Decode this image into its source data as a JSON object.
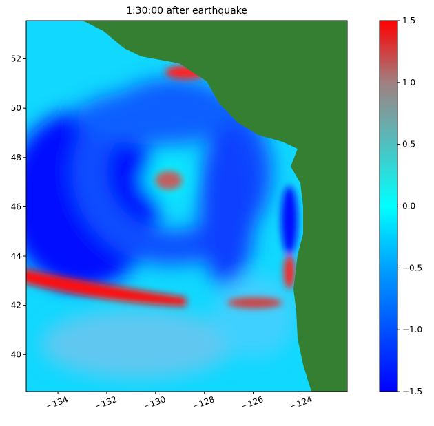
{
  "chart_data": {
    "type": "heatmap",
    "title": "1:30:00 after earthquake",
    "xlim": [
      -135.3,
      -122.15
    ],
    "ylim": [
      38.5,
      53.55
    ],
    "xticks": [
      {
        "value": -134,
        "label": "−134"
      },
      {
        "value": -132,
        "label": "−132"
      },
      {
        "value": -130,
        "label": "−130"
      },
      {
        "value": -128,
        "label": "−128"
      },
      {
        "value": -126,
        "label": "−126"
      },
      {
        "value": -124,
        "label": "−124"
      }
    ],
    "yticks": [
      40,
      42,
      44,
      46,
      48,
      50,
      52
    ],
    "clim": [
      -1.5,
      1.5
    ],
    "cticks": [
      {
        "value": -1.5,
        "label": "−1.5"
      },
      {
        "value": -1.0,
        "label": "−1.0"
      },
      {
        "value": -0.5,
        "label": "−0.5"
      },
      {
        "value": 0.0,
        "label": "0.0"
      },
      {
        "value": 0.5,
        "label": "0.5"
      },
      {
        "value": 1.0,
        "label": "1.0"
      },
      {
        "value": 1.5,
        "label": "1.5"
      }
    ],
    "colormap": [
      {
        "value": -1.5,
        "color": "#0000ff"
      },
      {
        "value": -0.5,
        "color": "#00a0ff"
      },
      {
        "value": 0.0,
        "color": "#00ffff"
      },
      {
        "value": 1.0,
        "color": "#a08080"
      },
      {
        "value": 1.5,
        "color": "#ff0000"
      }
    ]
  }
}
